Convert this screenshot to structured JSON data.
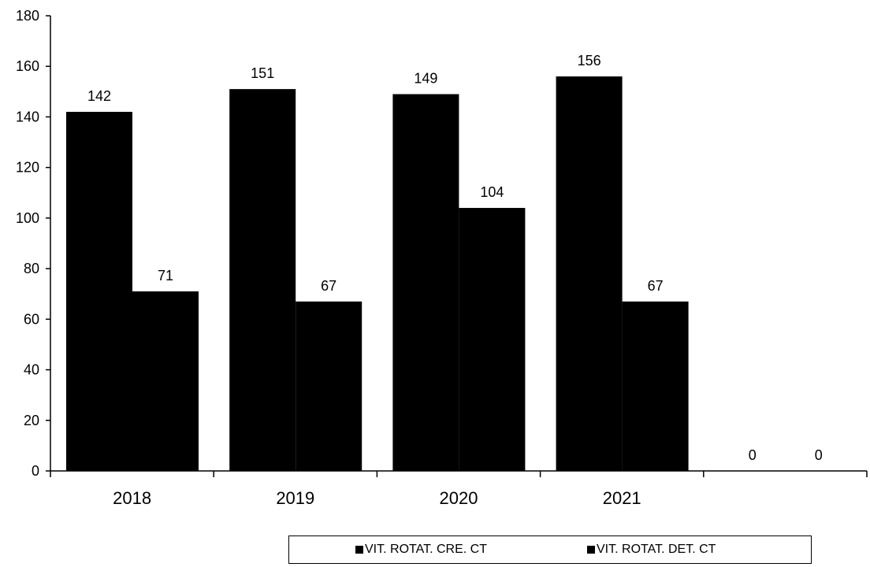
{
  "chart_data": {
    "type": "bar",
    "categories": [
      "2018",
      "2019",
      "2020",
      "2021",
      ""
    ],
    "series": [
      {
        "name": "VIT. ROTAT. CRE. CT",
        "values": [
          142,
          151,
          149,
          156,
          0
        ],
        "color": "#000000"
      },
      {
        "name": "VIT. ROTAT. DET. CT",
        "values": [
          71,
          67,
          104,
          67,
          0
        ],
        "color": "#000000"
      }
    ],
    "title": "",
    "xlabel": "",
    "ylabel": "",
    "ylim": [
      0,
      180
    ],
    "yticks": [
      0,
      20,
      40,
      60,
      80,
      100,
      120,
      140,
      160,
      180
    ],
    "grid": false,
    "legend_position": "bottom"
  }
}
